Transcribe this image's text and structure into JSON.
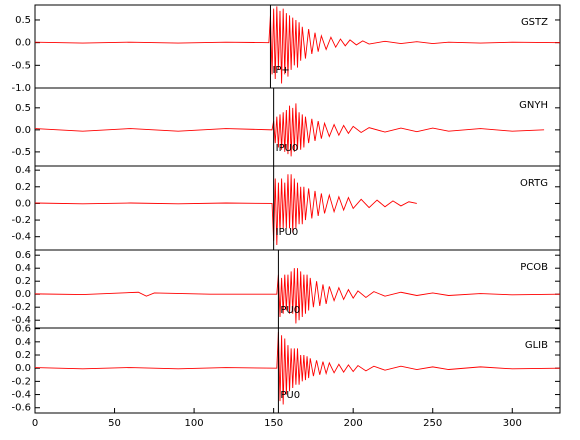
{
  "chart_data": [
    {
      "type": "line",
      "title": "GSTZ",
      "pick": 148,
      "pick_label": "IP+",
      "xlim": [
        0,
        330
      ],
      "ylim": [
        -1.0,
        0.83
      ],
      "yticks": [
        {
          "value": -1.0,
          "label": "-1.0"
        },
        -0.5,
        {
          "value": 0,
          "label": "0.0"
        },
        0.5
      ],
      "series": [
        {
          "color": "#ff0000",
          "x": [
            0,
            30,
            60,
            90,
            120,
            147,
            148,
            149,
            150,
            151,
            152,
            153,
            154,
            155,
            156,
            157,
            158,
            159,
            160,
            161,
            162,
            163,
            164,
            165,
            166,
            167,
            168,
            170,
            172,
            174,
            176,
            178,
            180,
            183,
            186,
            189,
            192,
            195,
            198,
            202,
            206,
            210,
            220,
            230,
            240,
            250,
            260,
            280,
            300,
            330
          ],
          "values": [
            0.01,
            -0.01,
            0.01,
            -0.01,
            0.01,
            0,
            0.6,
            -0.7,
            0.75,
            -0.8,
            0.8,
            -0.6,
            0.7,
            -0.9,
            0.75,
            -0.7,
            0.65,
            -0.75,
            0.6,
            -0.6,
            0.55,
            -0.5,
            0.5,
            -0.55,
            0.45,
            -0.4,
            0.35,
            -0.35,
            0.3,
            -0.25,
            0.22,
            -0.2,
            0.15,
            -0.15,
            0.12,
            -0.1,
            0.08,
            -0.07,
            0.06,
            -0.05,
            0.04,
            -0.03,
            0.03,
            -0.02,
            0.02,
            -0.02,
            0.01,
            -0.01,
            0.01,
            0
          ]
        }
      ]
    },
    {
      "type": "line",
      "title": "GNYH",
      "pick": 150,
      "pick_label": "IPU0",
      "xlim": [
        0,
        330
      ],
      "ylim": [
        -0.82,
        0.95
      ],
      "yticks": [
        -0.5,
        {
          "value": 0,
          "label": "0.0"
        },
        0.5
      ],
      "series": [
        {
          "color": "#ff0000",
          "x": [
            0,
            30,
            60,
            90,
            120,
            149,
            150,
            151,
            152,
            153,
            154,
            155,
            156,
            157,
            158,
            159,
            160,
            161,
            162,
            163,
            164,
            165,
            166,
            167,
            168,
            169,
            170,
            172,
            174,
            176,
            178,
            180,
            182,
            185,
            188,
            191,
            194,
            197,
            200,
            205,
            210,
            220,
            230,
            240,
            250,
            260,
            280,
            300,
            320
          ],
          "values": [
            0.03,
            -0.03,
            0.03,
            -0.03,
            0.03,
            0,
            0.2,
            -0.3,
            0.3,
            -0.4,
            0.35,
            -0.45,
            0.4,
            -0.5,
            0.45,
            -0.55,
            0.55,
            -0.6,
            0.5,
            -0.5,
            0.6,
            -0.45,
            0.4,
            -0.45,
            0.35,
            -0.4,
            0.3,
            -0.3,
            0.25,
            -0.25,
            0.2,
            -0.2,
            0.15,
            -0.15,
            0.12,
            -0.12,
            0.1,
            -0.08,
            0.08,
            -0.06,
            0.05,
            -0.05,
            0.04,
            -0.04,
            0.04,
            -0.03,
            0.03,
            -0.03,
            0
          ]
        }
      ]
    },
    {
      "type": "line",
      "title": "ORTG",
      "pick": 150,
      "pick_label": "IPU0",
      "xlim": [
        0,
        330
      ],
      "ylim": [
        -0.56,
        0.45
      ],
      "yticks": [
        -0.4,
        -0.2,
        {
          "value": 0,
          "label": "0.0"
        },
        0.2,
        0.4
      ],
      "series": [
        {
          "color": "#ff0000",
          "x": [
            0,
            30,
            60,
            90,
            120,
            149,
            150,
            151,
            152,
            153,
            154,
            155,
            156,
            157,
            158,
            159,
            160,
            161,
            162,
            163,
            164,
            165,
            166,
            167,
            168,
            169,
            170,
            172,
            174,
            176,
            178,
            180,
            182,
            185,
            188,
            191,
            194,
            197,
            200,
            205,
            210,
            215,
            220,
            225,
            230,
            235,
            240
          ],
          "values": [
            0.005,
            -0.005,
            0.005,
            -0.005,
            0.005,
            0,
            -0.45,
            0.3,
            -0.5,
            0.25,
            -0.35,
            0.3,
            -0.3,
            0.25,
            -0.3,
            0.35,
            -0.3,
            0.35,
            -0.35,
            0.3,
            -0.3,
            0.25,
            -0.25,
            0.2,
            -0.25,
            0.2,
            -0.2,
            0.18,
            -0.18,
            0.15,
            -0.15,
            0.12,
            -0.12,
            0.1,
            -0.1,
            0.08,
            -0.08,
            0.07,
            -0.06,
            0.05,
            -0.05,
            0.04,
            -0.04,
            0.03,
            -0.03,
            0.02,
            0
          ]
        }
      ]
    },
    {
      "type": "line",
      "title": "PCOB",
      "pick": 153,
      "pick_label": "PU0",
      "xlim": [
        0,
        330
      ],
      "ylim": [
        -0.52,
        0.68
      ],
      "yticks": [
        -0.4,
        -0.2,
        {
          "value": 0,
          "label": "0.0"
        },
        0.2,
        0.4,
        0.6
      ],
      "series": [
        {
          "color": "#ff0000",
          "x": [
            0,
            30,
            65,
            70,
            75,
            110,
            152,
            153,
            154,
            155,
            156,
            157,
            158,
            159,
            160,
            161,
            162,
            163,
            164,
            165,
            166,
            167,
            168,
            169,
            170,
            171,
            172,
            173,
            175,
            177,
            179,
            181,
            183,
            185,
            188,
            191,
            194,
            197,
            200,
            203,
            208,
            213,
            220,
            230,
            240,
            250,
            260,
            280,
            300,
            330
          ],
          "values": [
            0.005,
            -0.005,
            0.03,
            -0.03,
            0.02,
            0,
            0,
            0.3,
            -0.35,
            0.25,
            -0.3,
            0.3,
            -0.25,
            0.3,
            -0.3,
            0.35,
            -0.3,
            0.4,
            -0.45,
            0.4,
            -0.4,
            0.35,
            -0.35,
            0.3,
            -0.3,
            0.3,
            -0.25,
            0.25,
            -0.2,
            0.2,
            -0.18,
            0.15,
            -0.15,
            0.12,
            -0.1,
            0.1,
            -0.08,
            0.07,
            -0.06,
            0.05,
            -0.05,
            0.04,
            -0.03,
            0.03,
            -0.02,
            0.02,
            -0.02,
            0.01,
            -0.01,
            0
          ]
        }
      ]
    },
    {
      "type": "line",
      "title": "GLIB",
      "pick": 153,
      "pick_label": "PU0",
      "xlim": [
        0,
        330
      ],
      "ylim": [
        -0.68,
        0.61
      ],
      "yticks": [
        {
          "value": -0.6,
          "label": "-0.6"
        },
        -0.4,
        -0.2,
        {
          "value": 0,
          "label": "0.0"
        },
        0.2,
        0.4,
        0.6
      ],
      "xticks": [
        0,
        50,
        100,
        150,
        200,
        250,
        300
      ],
      "series": [
        {
          "color": "#ff0000",
          "x": [
            0,
            30,
            60,
            90,
            120,
            152,
            153,
            154,
            155,
            156,
            157,
            158,
            159,
            160,
            161,
            162,
            163,
            164,
            165,
            166,
            167,
            168,
            169,
            170,
            171,
            172,
            173,
            175,
            177,
            179,
            181,
            183,
            185,
            188,
            191,
            194,
            197,
            200,
            203,
            208,
            213,
            220,
            230,
            240,
            250,
            260,
            280,
            300,
            330
          ],
          "values": [
            0.01,
            -0.01,
            0.01,
            -0.01,
            0.01,
            0,
            0.55,
            -0.5,
            0.5,
            -0.55,
            0.45,
            -0.4,
            0.35,
            -0.35,
            0.3,
            -0.3,
            0.3,
            -0.25,
            0.3,
            -0.25,
            0.2,
            -0.2,
            0.2,
            -0.18,
            0.18,
            -0.15,
            0.15,
            -0.12,
            0.12,
            -0.1,
            0.1,
            -0.08,
            0.08,
            -0.07,
            0.06,
            -0.06,
            0.05,
            -0.05,
            0.04,
            -0.04,
            0.03,
            -0.03,
            0.03,
            -0.02,
            0.02,
            -0.02,
            0.02,
            -0.01,
            0
          ]
        }
      ]
    }
  ]
}
